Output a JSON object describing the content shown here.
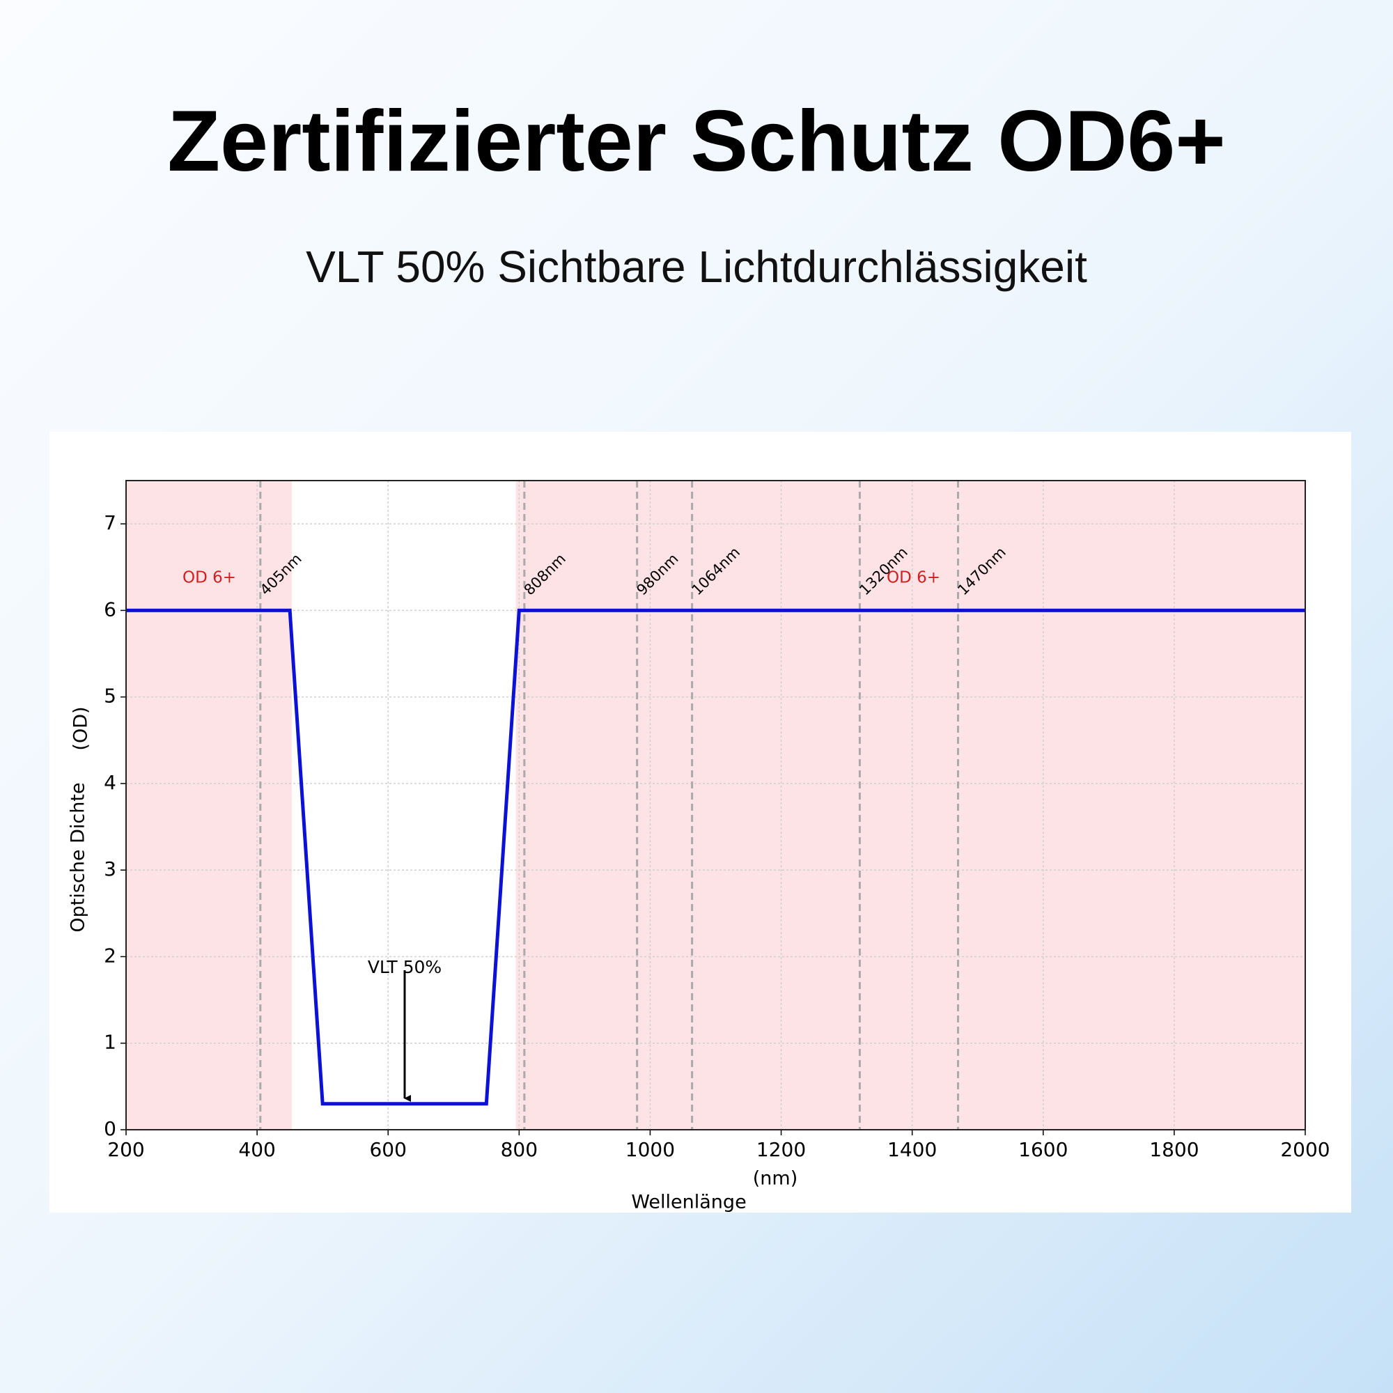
{
  "title": "Zertifizierter Schutz OD6+",
  "subtitle": "VLT 50% Sichtbare Lichtdurchlässigkeit",
  "chart_data": {
    "type": "line",
    "x": [
      200,
      450,
      500,
      750,
      800,
      2000
    ],
    "values": [
      6,
      6,
      0.3,
      0.3,
      6,
      6
    ],
    "color": "#0b12d6",
    "x_label": "Wellenlänge",
    "x_unit": "(nm)",
    "y_label": "Optische Dichte",
    "y_unit": "(OD)",
    "xlim": [
      200,
      2000
    ],
    "ylim": [
      0,
      7.5
    ],
    "xticks": [
      200,
      400,
      600,
      800,
      1000,
      1200,
      1400,
      1600,
      1800,
      2000
    ],
    "yticks": [
      0,
      1,
      2,
      3,
      4,
      5,
      6,
      7
    ],
    "grid": true,
    "shaded_regions": [
      [
        200,
        453
      ],
      [
        795,
        2000
      ]
    ],
    "shade_color": "#fde3e6",
    "markers": [
      {
        "x": 405,
        "label": "405nm"
      },
      {
        "x": 808,
        "label": "808nm"
      },
      {
        "x": 980,
        "label": "980nm"
      },
      {
        "x": 1064,
        "label": "1064nm"
      },
      {
        "x": 1320,
        "label": "1320nm"
      },
      {
        "x": 1470,
        "label": "1470nm"
      }
    ],
    "od_labels": [
      "OD 6+",
      "OD 6+"
    ],
    "vlt_label": "VLT 50%"
  }
}
